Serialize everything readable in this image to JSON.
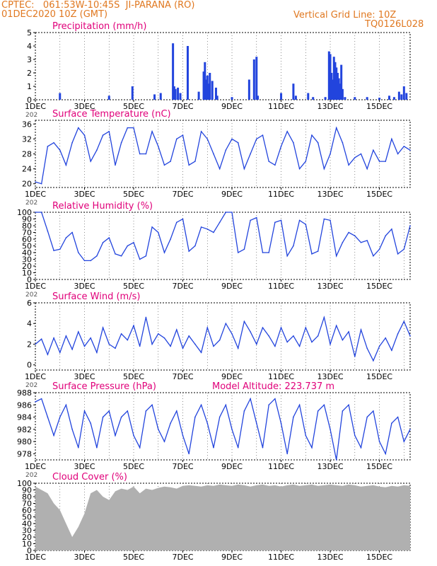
{
  "header": {
    "line1": "CPTEC:   061:53W-10:45S  JI-PARANA (RO)",
    "line2": "01DEC2020 10Z (GMT)",
    "grid_note": "Vertical Grid Line: 10Z",
    "code": "TQ0126L028"
  },
  "colors": {
    "header": "#e07820",
    "title": "#e0007a",
    "series": "#2244dd",
    "cloud": "#b0b0b0",
    "grid": "#000000"
  },
  "x_axis": {
    "tick_labels": [
      "1DEC",
      "3DEC",
      "5DEC",
      "7DEC",
      "9DEC",
      "11DEC",
      "13DEC",
      "15DEC"
    ],
    "tick_days": [
      0,
      2,
      4,
      6,
      8,
      10,
      12,
      14
    ],
    "start": "2020-12-01T10Z",
    "span_days": 15.25,
    "year_fragment": "202"
  },
  "chart_data": [
    {
      "type": "bar",
      "title": "Precipitation (mm/h)",
      "ylim": [
        0,
        5
      ],
      "yticks": [
        0,
        1,
        2,
        3,
        4,
        5
      ],
      "x_days": [
        1.0,
        3.0,
        3.95,
        4.85,
        5.1,
        5.6,
        5.65,
        5.7,
        5.8,
        5.9,
        6.2,
        6.65,
        6.85,
        6.9,
        6.95,
        7.0,
        7.05,
        7.1,
        7.2,
        7.35,
        7.4,
        8.0,
        8.7,
        8.9,
        9.0,
        9.05,
        10.0,
        10.5,
        10.6,
        11.1,
        11.3,
        11.8,
        11.95,
        12.0,
        12.05,
        12.1,
        12.15,
        12.2,
        12.25,
        12.3,
        12.35,
        12.4,
        12.45,
        12.5,
        12.6,
        13.0,
        13.5,
        14.0,
        14.4,
        14.6,
        14.8,
        14.9,
        15.0,
        15.1
      ],
      "values": [
        0.5,
        0.3,
        1.0,
        0.4,
        0.5,
        4.2,
        1.0,
        0.8,
        0.9,
        0.5,
        4.0,
        0.6,
        2.1,
        2.8,
        1.5,
        1.8,
        1.2,
        2.0,
        1.4,
        0.9,
        0.3,
        0.2,
        1.5,
        3.0,
        3.2,
        0.3,
        0.5,
        1.2,
        0.3,
        0.5,
        0.2,
        0.2,
        3.6,
        3.4,
        2.0,
        1.5,
        3.2,
        2.8,
        2.4,
        2.0,
        1.6,
        1.2,
        2.6,
        0.8,
        0.2,
        0.2,
        0.2,
        0.15,
        0.3,
        0.2,
        0.6,
        0.4,
        1.0,
        0.5
      ]
    },
    {
      "type": "line",
      "title": "Surface Temperature (nC)",
      "ylim": [
        19,
        37
      ],
      "yticks": [
        20,
        24,
        28,
        32,
        36
      ],
      "x_days": [
        0,
        0.25,
        0.5,
        0.75,
        1,
        1.25,
        1.5,
        1.75,
        2,
        2.25,
        2.5,
        2.75,
        3,
        3.25,
        3.5,
        3.75,
        4,
        4.25,
        4.5,
        4.75,
        5,
        5.25,
        5.5,
        5.75,
        6,
        6.25,
        6.5,
        6.75,
        7,
        7.25,
        7.5,
        7.75,
        8,
        8.25,
        8.5,
        8.75,
        9,
        9.25,
        9.5,
        9.75,
        10,
        10.25,
        10.5,
        10.75,
        11,
        11.25,
        11.5,
        11.75,
        12,
        12.25,
        12.5,
        12.75,
        13,
        13.25,
        13.5,
        13.75,
        14,
        14.25,
        14.5,
        14.75,
        15,
        15.25
      ],
      "values": [
        20.5,
        20,
        30,
        31,
        29,
        25,
        31,
        35,
        33,
        26,
        29,
        33,
        34,
        25,
        31,
        35,
        35,
        28,
        28,
        34,
        30,
        25,
        26,
        32,
        33,
        25,
        26,
        34,
        32,
        28,
        24,
        29,
        32,
        31,
        24,
        28,
        32,
        33,
        26,
        25,
        30,
        34,
        31,
        24,
        26,
        33,
        31,
        24,
        28,
        35,
        31,
        25,
        27,
        28,
        24,
        29,
        26,
        26,
        32,
        28,
        30,
        29
      ]
    },
    {
      "type": "line",
      "title": "Relative Humidity (%)",
      "ylim": [
        0,
        100
      ],
      "yticks": [
        0,
        10,
        20,
        30,
        40,
        50,
        60,
        70,
        80,
        90,
        100
      ],
      "x_days": [
        0,
        0.25,
        0.5,
        0.75,
        1,
        1.25,
        1.5,
        1.75,
        2,
        2.25,
        2.5,
        2.75,
        3,
        3.25,
        3.5,
        3.75,
        4,
        4.25,
        4.5,
        4.75,
        5,
        5.25,
        5.5,
        5.75,
        6,
        6.25,
        6.5,
        6.75,
        7,
        7.25,
        7.5,
        7.75,
        8,
        8.25,
        8.5,
        8.75,
        9,
        9.25,
        9.5,
        9.75,
        10,
        10.25,
        10.5,
        10.75,
        11,
        11.25,
        11.5,
        11.75,
        12,
        12.25,
        12.5,
        12.75,
        13,
        13.25,
        13.5,
        13.75,
        14,
        14.25,
        14.5,
        14.75,
        15,
        15.25
      ],
      "values": [
        100,
        100,
        72,
        43,
        45,
        62,
        70,
        40,
        28,
        28,
        35,
        55,
        62,
        38,
        35,
        50,
        55,
        30,
        35,
        78,
        70,
        40,
        60,
        85,
        90,
        42,
        50,
        78,
        75,
        70,
        85,
        100,
        100,
        40,
        45,
        88,
        92,
        40,
        40,
        85,
        88,
        35,
        50,
        88,
        82,
        38,
        42,
        90,
        88,
        35,
        55,
        70,
        65,
        55,
        58,
        35,
        45,
        65,
        75,
        38,
        45,
        80
      ]
    },
    {
      "type": "line",
      "title": "Surface Wind (m/s)",
      "ylim": [
        -0.5,
        6
      ],
      "yticks": [
        0,
        2,
        4,
        6
      ],
      "x_days": [
        0,
        0.25,
        0.5,
        0.75,
        1,
        1.25,
        1.5,
        1.75,
        2,
        2.25,
        2.5,
        2.75,
        3,
        3.25,
        3.5,
        3.75,
        4,
        4.25,
        4.5,
        4.75,
        5,
        5.25,
        5.5,
        5.75,
        6,
        6.25,
        6.5,
        6.75,
        7,
        7.25,
        7.5,
        7.75,
        8,
        8.25,
        8.5,
        8.75,
        9,
        9.25,
        9.5,
        9.75,
        10,
        10.25,
        10.5,
        10.75,
        11,
        11.25,
        11.5,
        11.75,
        12,
        12.25,
        12.5,
        12.75,
        13,
        13.25,
        13.5,
        13.75,
        14,
        14.25,
        14.5,
        14.75,
        15,
        15.25
      ],
      "values": [
        2.0,
        2.5,
        1.0,
        2.6,
        1.2,
        2.8,
        1.5,
        3.2,
        1.8,
        2.6,
        1.2,
        3.6,
        2.0,
        1.6,
        3.0,
        2.4,
        3.8,
        1.8,
        4.6,
        2.0,
        3.0,
        2.6,
        1.8,
        3.4,
        1.6,
        2.8,
        2.0,
        1.2,
        3.6,
        1.8,
        2.4,
        4.0,
        3.0,
        1.6,
        4.2,
        3.2,
        2.0,
        3.6,
        2.8,
        1.8,
        3.6,
        2.2,
        2.8,
        1.8,
        3.6,
        2.2,
        2.8,
        4.6,
        2.0,
        3.8,
        2.4,
        3.2,
        0.8,
        3.4,
        1.6,
        0.4,
        1.8,
        2.6,
        1.4,
        3.0,
        4.2,
        2.8
      ]
    },
    {
      "type": "line",
      "title": "Surface Pressure (hPa)",
      "subtitle": "Model Altitude: 223.737  m",
      "ylim": [
        977,
        988
      ],
      "yticks": [
        978,
        980,
        982,
        984,
        986,
        988
      ],
      "x_days": [
        0,
        0.25,
        0.5,
        0.75,
        1,
        1.25,
        1.5,
        1.75,
        2,
        2.25,
        2.5,
        2.75,
        3,
        3.25,
        3.5,
        3.75,
        4,
        4.25,
        4.5,
        4.75,
        5,
        5.25,
        5.5,
        5.75,
        6,
        6.25,
        6.5,
        6.75,
        7,
        7.25,
        7.5,
        7.75,
        8,
        8.25,
        8.5,
        8.75,
        9,
        9.25,
        9.5,
        9.75,
        10,
        10.25,
        10.5,
        10.75,
        11,
        11.25,
        11.5,
        11.75,
        12,
        12.25,
        12.5,
        12.75,
        13,
        13.25,
        13.5,
        13.75,
        14,
        14.25,
        14.5,
        14.75,
        15,
        15.25
      ],
      "values": [
        986.5,
        987,
        984,
        981,
        984,
        986,
        982,
        979,
        985,
        983,
        979,
        984,
        985,
        981,
        984,
        985,
        981,
        979,
        985,
        986,
        982,
        980,
        983,
        985,
        981,
        978,
        984,
        986,
        983,
        979,
        984,
        986,
        982,
        979,
        985,
        987,
        983,
        979,
        986,
        987,
        983,
        978,
        984,
        986,
        981,
        979,
        985,
        986,
        982,
        977,
        985,
        986,
        981,
        979,
        984,
        985,
        980,
        978,
        983,
        984,
        980,
        982
      ]
    },
    {
      "type": "area",
      "title": "Cloud Cover (%)",
      "ylim": [
        0,
        100
      ],
      "yticks": [
        0,
        10,
        20,
        30,
        40,
        50,
        60,
        70,
        80,
        90,
        100
      ],
      "x_days": [
        0,
        0.25,
        0.5,
        0.75,
        1,
        1.25,
        1.5,
        1.75,
        2,
        2.25,
        2.5,
        2.75,
        3,
        3.25,
        3.5,
        3.75,
        4,
        4.25,
        4.5,
        4.75,
        5,
        5.25,
        5.5,
        5.75,
        6,
        6.25,
        6.5,
        6.75,
        7,
        7.25,
        7.5,
        7.75,
        8,
        8.25,
        8.5,
        8.75,
        9,
        9.25,
        9.5,
        9.75,
        10,
        10.25,
        10.5,
        10.75,
        11,
        11.25,
        11.5,
        11.75,
        12,
        12.25,
        12.5,
        12.75,
        13,
        13.25,
        13.5,
        13.75,
        14,
        14.25,
        14.5,
        14.75,
        15,
        15.25
      ],
      "values": [
        95,
        90,
        85,
        70,
        60,
        40,
        20,
        35,
        55,
        85,
        90,
        80,
        75,
        88,
        92,
        90,
        95,
        85,
        92,
        90,
        93,
        95,
        94,
        92,
        96,
        97,
        96,
        95,
        97,
        96,
        98,
        97,
        96,
        98,
        97,
        95,
        97,
        98,
        96,
        97,
        95,
        97,
        98,
        96,
        97,
        98,
        96,
        97,
        98,
        97,
        96,
        98,
        97,
        95,
        96,
        97,
        95,
        94,
        96,
        95,
        97,
        96
      ]
    }
  ]
}
